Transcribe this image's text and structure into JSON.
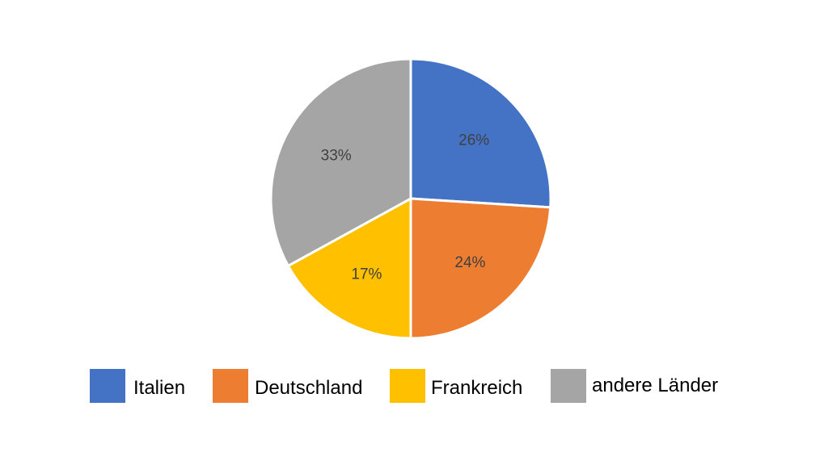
{
  "chart_data": {
    "type": "pie",
    "title": "",
    "legend_position": "bottom",
    "label_format": "percent",
    "categories": [
      "Italien",
      "Deutschland",
      "Frankreich",
      "andere Länder"
    ],
    "values": [
      26,
      24,
      17,
      33
    ],
    "labels": [
      "26%",
      "24%",
      "17%",
      "33%"
    ],
    "colors": [
      "#4472C4",
      "#ED7D31",
      "#FFC000",
      "#A5A5A5"
    ],
    "start": "12 o'clock",
    "direction": "clockwise"
  }
}
